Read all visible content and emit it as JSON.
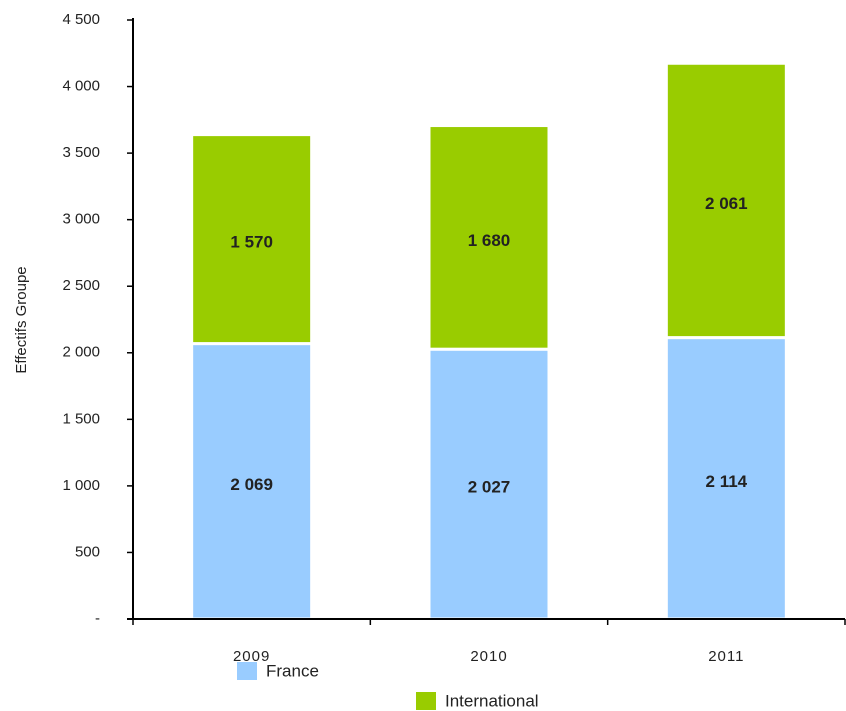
{
  "chart_data": {
    "type": "stacked-bar",
    "y_label": "Effectifs Groupe",
    "categories": [
      "2009",
      "2010",
      "2011"
    ],
    "series": [
      {
        "name": "France",
        "color": "#99ccff",
        "values": [
          2069,
          2027,
          2114
        ],
        "value_labels": [
          "2 069",
          "2 027",
          "2 114"
        ]
      },
      {
        "name": "International",
        "color": "#99cc00",
        "values": [
          1570,
          1680,
          2061
        ],
        "value_labels": [
          "1 570",
          "1 680",
          "2 061"
        ]
      }
    ],
    "ylim": [
      0,
      4500
    ],
    "yticks": [
      {
        "value": 0,
        "label": "-"
      },
      500,
      {
        "value": 1000,
        "label": "1 000"
      },
      {
        "value": 1500,
        "label": "1 500"
      },
      {
        "value": 2000,
        "label": "2 000"
      },
      {
        "value": 2500,
        "label": "2 500"
      },
      {
        "value": 3000,
        "label": "3 000"
      },
      {
        "value": 3500,
        "label": "3 500"
      },
      {
        "value": 4000,
        "label": "4 000"
      },
      {
        "value": 4500,
        "label": "4 500"
      }
    ]
  }
}
